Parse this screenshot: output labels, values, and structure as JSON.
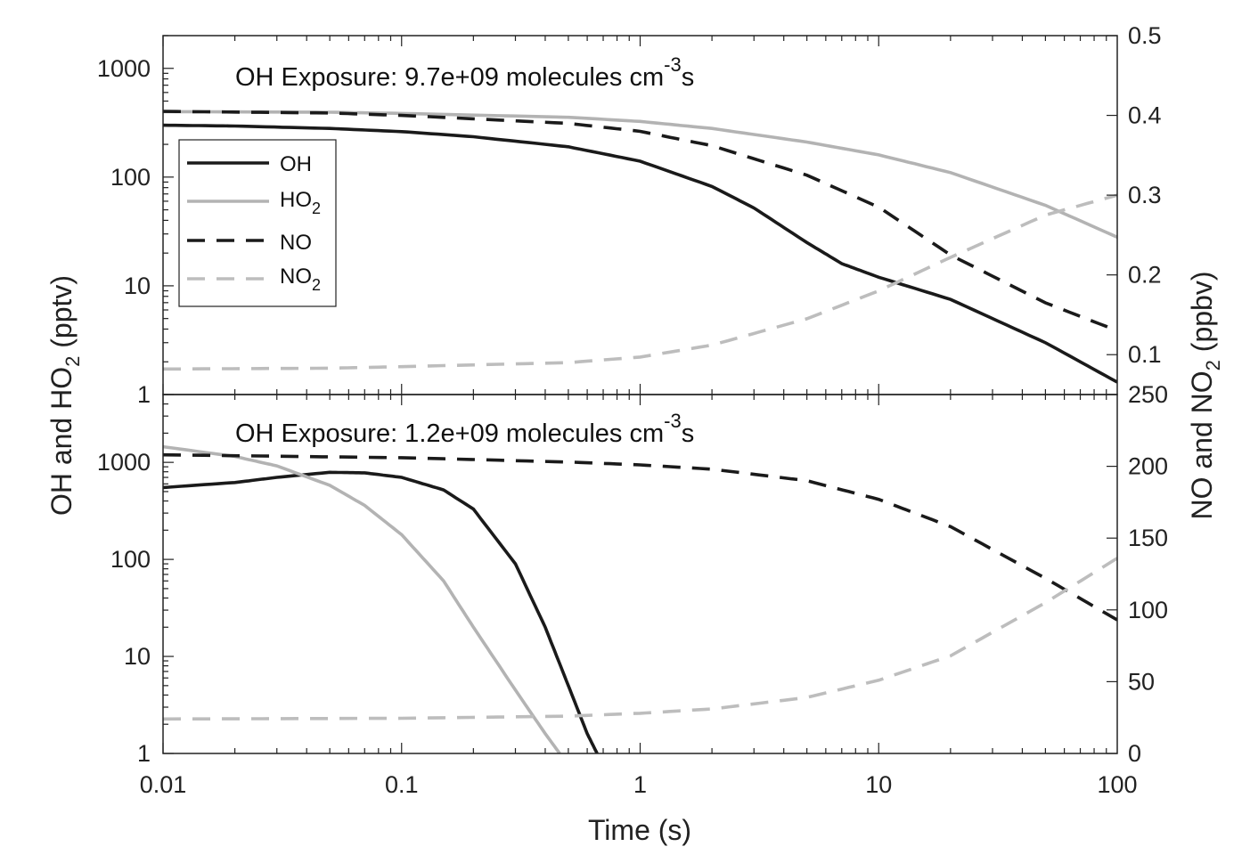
{
  "chart_data": [
    {
      "type": "line",
      "panel": "top",
      "annotation": {
        "prefix": "OH Exposure: 9.7e+09 molecules cm",
        "sup": "-3",
        "suffix": "s"
      },
      "x_scale": "log",
      "y_scale": "log",
      "y2_scale": "linear",
      "xlim": [
        0.01,
        100
      ],
      "ylim": [
        1,
        2000
      ],
      "y2lim": [
        0.05,
        0.5
      ],
      "y_ticks": [
        "1",
        "10",
        "100",
        "1000"
      ],
      "y2_ticks": [
        "0.1",
        "0.2",
        "0.3",
        "0.4",
        "0.5"
      ],
      "series": [
        {
          "name": "OH",
          "axis": "left",
          "color": "#1a1a1a",
          "dash": "solid",
          "x": [
            0.01,
            0.02,
            0.05,
            0.1,
            0.2,
            0.5,
            1,
            2,
            3,
            5,
            7,
            10,
            20,
            50,
            100
          ],
          "y": [
            300,
            295,
            280,
            262,
            235,
            190,
            140,
            82,
            52,
            25,
            16,
            12,
            7.5,
            3,
            1.3
          ]
        },
        {
          "name": "HO2",
          "axis": "left",
          "color": "#b3b3b3",
          "dash": "solid",
          "x": [
            0.01,
            0.05,
            0.1,
            0.5,
            1,
            2,
            5,
            10,
            20,
            50,
            100
          ],
          "y": [
            400,
            395,
            385,
            355,
            325,
            280,
            210,
            160,
            110,
            55,
            28
          ]
        },
        {
          "name": "NO",
          "axis": "right",
          "color": "#1a1a1a",
          "dash": "dashed",
          "x": [
            0.01,
            0.05,
            0.1,
            0.5,
            1,
            2,
            5,
            10,
            20,
            50,
            100
          ],
          "y": [
            0.405,
            0.403,
            0.4,
            0.39,
            0.38,
            0.362,
            0.325,
            0.285,
            0.225,
            0.165,
            0.13
          ]
        },
        {
          "name": "NO2",
          "axis": "right",
          "color": "#bdbdbd",
          "dash": "dashed",
          "x": [
            0.01,
            0.05,
            0.1,
            0.5,
            1,
            2,
            5,
            10,
            20,
            50,
            100
          ],
          "y": [
            0.082,
            0.083,
            0.085,
            0.09,
            0.097,
            0.112,
            0.145,
            0.18,
            0.222,
            0.275,
            0.3
          ]
        }
      ],
      "legend": {
        "placement": "upper-left",
        "entries": [
          {
            "base": "OH",
            "sub": ""
          },
          {
            "base": "HO",
            "sub": "2"
          },
          {
            "base": "NO",
            "sub": ""
          },
          {
            "base": "NO",
            "sub": "2"
          }
        ]
      }
    },
    {
      "type": "line",
      "panel": "bottom",
      "annotation": {
        "prefix": "OH Exposure: 1.2e+09 molecules cm",
        "sup": "-3",
        "suffix": "s"
      },
      "x_scale": "log",
      "y_scale": "log",
      "y2_scale": "linear",
      "xlim": [
        0.01,
        100
      ],
      "ylim": [
        1,
        5000
      ],
      "y2lim": [
        0,
        250
      ],
      "y_ticks": [
        "1",
        "10",
        "100",
        "1000"
      ],
      "y2_ticks": [
        "0",
        "50",
        "100",
        "150",
        "200",
        "250"
      ],
      "x_ticks": [
        "0.01",
        "0.1",
        "1",
        "10",
        "100"
      ],
      "series": [
        {
          "name": "OH",
          "axis": "left",
          "color": "#1a1a1a",
          "dash": "solid",
          "x": [
            0.01,
            0.02,
            0.03,
            0.05,
            0.07,
            0.1,
            0.15,
            0.2,
            0.3,
            0.4,
            0.5,
            0.6,
            0.66
          ],
          "y": [
            550,
            620,
            700,
            790,
            780,
            700,
            520,
            330,
            90,
            20,
            5,
            1.6,
            1
          ]
        },
        {
          "name": "HO2",
          "axis": "left",
          "color": "#b3b3b3",
          "dash": "solid",
          "x": [
            0.01,
            0.02,
            0.03,
            0.05,
            0.07,
            0.1,
            0.15,
            0.2,
            0.3,
            0.4,
            0.46
          ],
          "y": [
            1450,
            1150,
            920,
            580,
            360,
            180,
            60,
            20,
            4.5,
            1.6,
            1
          ]
        },
        {
          "name": "NO",
          "axis": "right",
          "color": "#1a1a1a",
          "dash": "dashed",
          "x": [
            0.01,
            0.1,
            0.5,
            1,
            2,
            5,
            10,
            20,
            50,
            100
          ],
          "y": [
            208,
            206,
            203,
            201,
            198,
            190,
            177,
            158,
            122,
            93
          ]
        },
        {
          "name": "NO2",
          "axis": "right",
          "color": "#bdbdbd",
          "dash": "dashed",
          "x": [
            0.01,
            0.1,
            0.5,
            1,
            2,
            5,
            10,
            20,
            50,
            100
          ],
          "y": [
            24,
            24.5,
            26,
            28,
            31,
            39,
            51,
            68,
            105,
            136
          ]
        }
      ]
    }
  ],
  "axes": {
    "xlabel": "Time (s)",
    "ylabel": {
      "prefix": "OH and HO",
      "sub": "2",
      "suffix": " (pptv)"
    },
    "y2label": {
      "prefix": "NO and NO",
      "sub": "2",
      "suffix": " (ppbv)"
    }
  }
}
